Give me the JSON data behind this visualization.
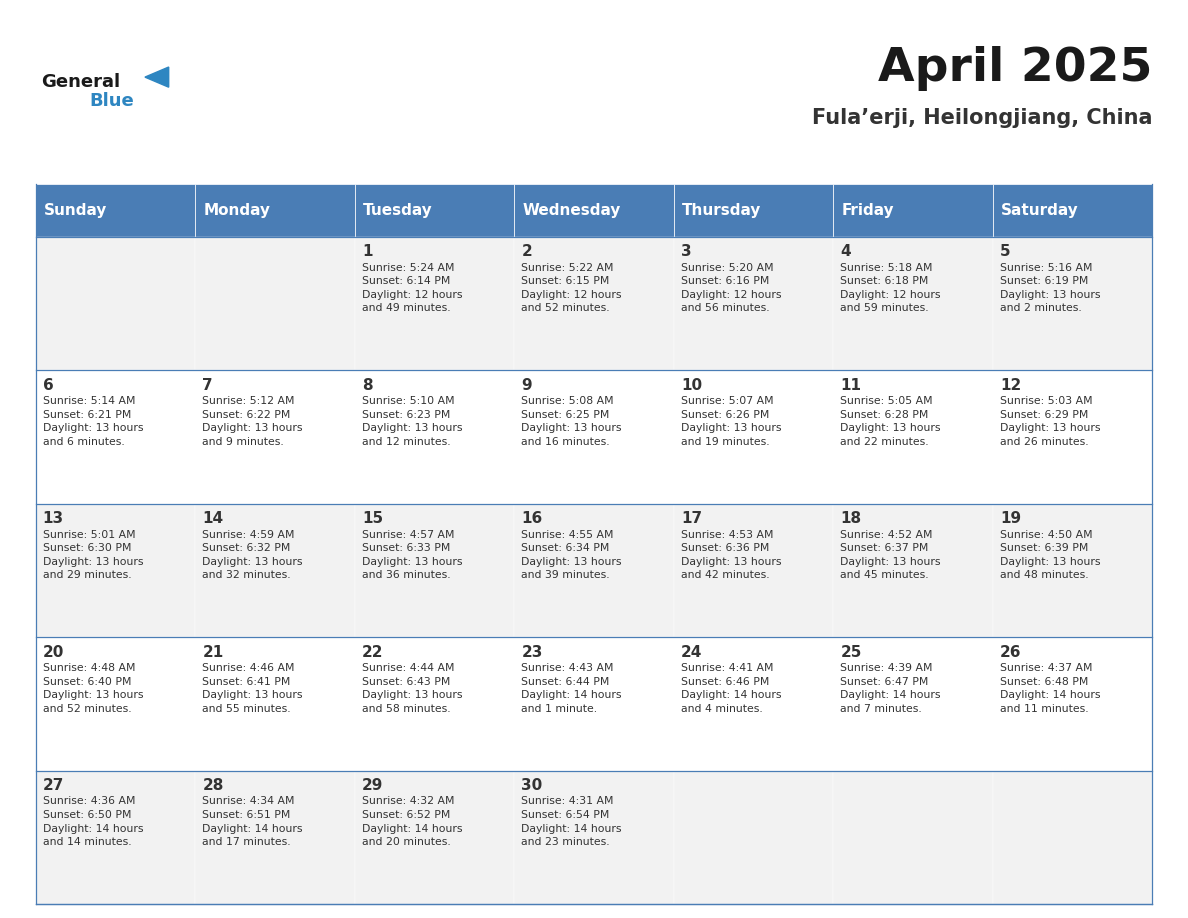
{
  "title": "April 2025",
  "subtitle": "Fula’erji, Heilongjiang, China",
  "days_of_week": [
    "Sunday",
    "Monday",
    "Tuesday",
    "Wednesday",
    "Thursday",
    "Friday",
    "Saturday"
  ],
  "header_bg": "#4A7DB5",
  "header_text": "#FFFFFF",
  "row_bg_odd": "#F2F2F2",
  "row_bg_even": "#FFFFFF",
  "cell_text_color": "#333333",
  "border_color": "#4A7DB5",
  "title_color": "#1a1a1a",
  "subtitle_color": "#333333",
  "blue_color": "#2E86C1",
  "calendar": [
    [
      {
        "day": "",
        "info": ""
      },
      {
        "day": "",
        "info": ""
      },
      {
        "day": "1",
        "info": "Sunrise: 5:24 AM\nSunset: 6:14 PM\nDaylight: 12 hours\nand 49 minutes."
      },
      {
        "day": "2",
        "info": "Sunrise: 5:22 AM\nSunset: 6:15 PM\nDaylight: 12 hours\nand 52 minutes."
      },
      {
        "day": "3",
        "info": "Sunrise: 5:20 AM\nSunset: 6:16 PM\nDaylight: 12 hours\nand 56 minutes."
      },
      {
        "day": "4",
        "info": "Sunrise: 5:18 AM\nSunset: 6:18 PM\nDaylight: 12 hours\nand 59 minutes."
      },
      {
        "day": "5",
        "info": "Sunrise: 5:16 AM\nSunset: 6:19 PM\nDaylight: 13 hours\nand 2 minutes."
      }
    ],
    [
      {
        "day": "6",
        "info": "Sunrise: 5:14 AM\nSunset: 6:21 PM\nDaylight: 13 hours\nand 6 minutes."
      },
      {
        "day": "7",
        "info": "Sunrise: 5:12 AM\nSunset: 6:22 PM\nDaylight: 13 hours\nand 9 minutes."
      },
      {
        "day": "8",
        "info": "Sunrise: 5:10 AM\nSunset: 6:23 PM\nDaylight: 13 hours\nand 12 minutes."
      },
      {
        "day": "9",
        "info": "Sunrise: 5:08 AM\nSunset: 6:25 PM\nDaylight: 13 hours\nand 16 minutes."
      },
      {
        "day": "10",
        "info": "Sunrise: 5:07 AM\nSunset: 6:26 PM\nDaylight: 13 hours\nand 19 minutes."
      },
      {
        "day": "11",
        "info": "Sunrise: 5:05 AM\nSunset: 6:28 PM\nDaylight: 13 hours\nand 22 minutes."
      },
      {
        "day": "12",
        "info": "Sunrise: 5:03 AM\nSunset: 6:29 PM\nDaylight: 13 hours\nand 26 minutes."
      }
    ],
    [
      {
        "day": "13",
        "info": "Sunrise: 5:01 AM\nSunset: 6:30 PM\nDaylight: 13 hours\nand 29 minutes."
      },
      {
        "day": "14",
        "info": "Sunrise: 4:59 AM\nSunset: 6:32 PM\nDaylight: 13 hours\nand 32 minutes."
      },
      {
        "day": "15",
        "info": "Sunrise: 4:57 AM\nSunset: 6:33 PM\nDaylight: 13 hours\nand 36 minutes."
      },
      {
        "day": "16",
        "info": "Sunrise: 4:55 AM\nSunset: 6:34 PM\nDaylight: 13 hours\nand 39 minutes."
      },
      {
        "day": "17",
        "info": "Sunrise: 4:53 AM\nSunset: 6:36 PM\nDaylight: 13 hours\nand 42 minutes."
      },
      {
        "day": "18",
        "info": "Sunrise: 4:52 AM\nSunset: 6:37 PM\nDaylight: 13 hours\nand 45 minutes."
      },
      {
        "day": "19",
        "info": "Sunrise: 4:50 AM\nSunset: 6:39 PM\nDaylight: 13 hours\nand 48 minutes."
      }
    ],
    [
      {
        "day": "20",
        "info": "Sunrise: 4:48 AM\nSunset: 6:40 PM\nDaylight: 13 hours\nand 52 minutes."
      },
      {
        "day": "21",
        "info": "Sunrise: 4:46 AM\nSunset: 6:41 PM\nDaylight: 13 hours\nand 55 minutes."
      },
      {
        "day": "22",
        "info": "Sunrise: 4:44 AM\nSunset: 6:43 PM\nDaylight: 13 hours\nand 58 minutes."
      },
      {
        "day": "23",
        "info": "Sunrise: 4:43 AM\nSunset: 6:44 PM\nDaylight: 14 hours\nand 1 minute."
      },
      {
        "day": "24",
        "info": "Sunrise: 4:41 AM\nSunset: 6:46 PM\nDaylight: 14 hours\nand 4 minutes."
      },
      {
        "day": "25",
        "info": "Sunrise: 4:39 AM\nSunset: 6:47 PM\nDaylight: 14 hours\nand 7 minutes."
      },
      {
        "day": "26",
        "info": "Sunrise: 4:37 AM\nSunset: 6:48 PM\nDaylight: 14 hours\nand 11 minutes."
      }
    ],
    [
      {
        "day": "27",
        "info": "Sunrise: 4:36 AM\nSunset: 6:50 PM\nDaylight: 14 hours\nand 14 minutes."
      },
      {
        "day": "28",
        "info": "Sunrise: 4:34 AM\nSunset: 6:51 PM\nDaylight: 14 hours\nand 17 minutes."
      },
      {
        "day": "29",
        "info": "Sunrise: 4:32 AM\nSunset: 6:52 PM\nDaylight: 14 hours\nand 20 minutes."
      },
      {
        "day": "30",
        "info": "Sunrise: 4:31 AM\nSunset: 6:54 PM\nDaylight: 14 hours\nand 23 minutes."
      },
      {
        "day": "",
        "info": ""
      },
      {
        "day": "",
        "info": ""
      },
      {
        "day": "",
        "info": ""
      }
    ]
  ]
}
